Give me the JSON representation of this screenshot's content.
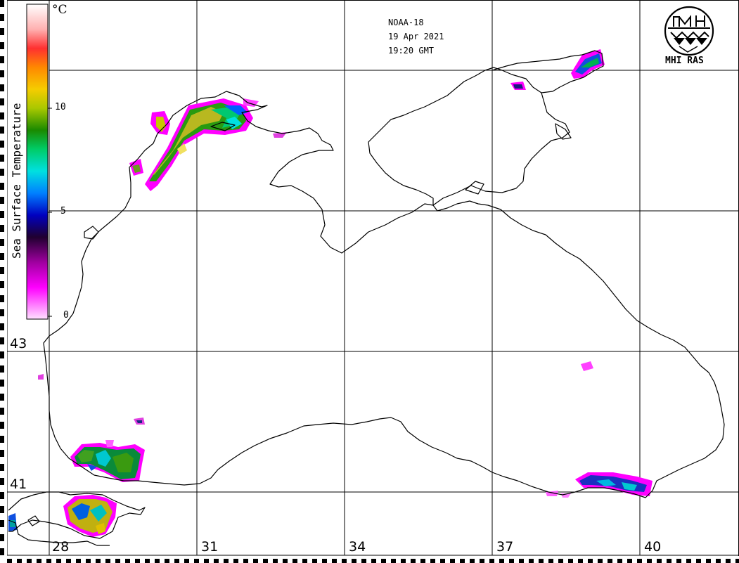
{
  "satellite": {
    "name": "NOAA-18",
    "date": "19 Apr 2021",
    "time": "19:20 GMT"
  },
  "logo": {
    "text": "MHI RAS",
    "icon": "mhi-ras-logo-icon"
  },
  "legend": {
    "title": "Sea Surface Temperature",
    "unit": "°C",
    "ticks": [
      "10",
      "5",
      "0"
    ],
    "colors": [
      "#ffffff",
      "#ff3333",
      "#ff8800",
      "#f5cc00",
      "#c8d800",
      "#66b800",
      "#008a00",
      "#00c860",
      "#00e0e0",
      "#0090ff",
      "#0000c0",
      "#300040",
      "#a000a0",
      "#ff00ff",
      "#ffd0ff"
    ]
  },
  "longitude_labels": [
    "28",
    "31",
    "34",
    "37",
    "40"
  ],
  "latitude_labels": [
    "43",
    "41"
  ]
}
